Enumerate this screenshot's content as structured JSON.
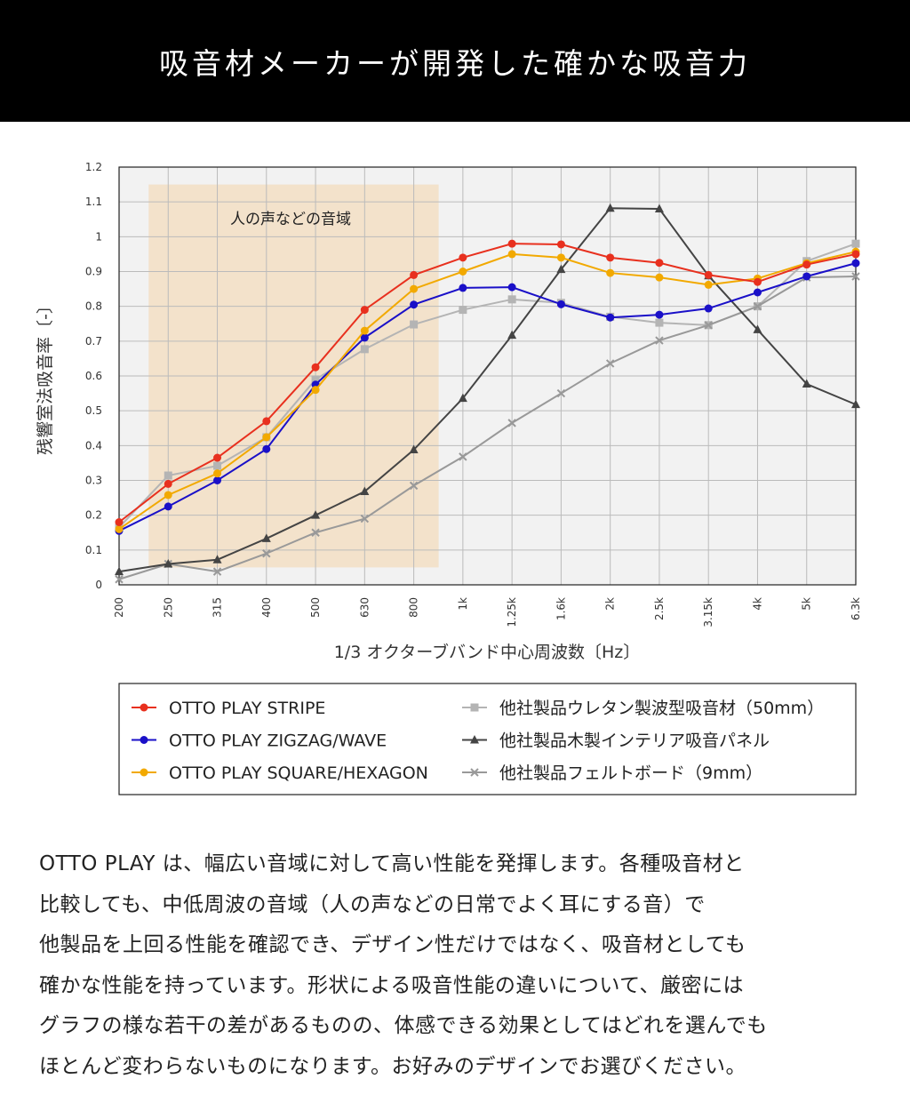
{
  "header": {
    "title": "吸音材メーカーが開発した確かな吸音力"
  },
  "chart_data": {
    "type": "line",
    "title": "",
    "xlabel": "1/3 オクターブバンド中心周波数〔Hz〕",
    "ylabel": "残響室法吸音率〔-〕",
    "ylim": [
      0,
      1.2
    ],
    "yticks": [
      "0",
      "0.1",
      "0.2",
      "0.3",
      "0.4",
      "0.5",
      "0.6",
      "0.7",
      "0.8",
      "0.9",
      "1",
      "1.1",
      "1.2"
    ],
    "categories": [
      "200",
      "250",
      "315",
      "400",
      "500",
      "630",
      "800",
      "1k",
      "1.25k",
      "1.6k",
      "2k",
      "2.5k",
      "3.15k",
      "4k",
      "5k",
      "6.3k"
    ],
    "grid": true,
    "legend_position": "bottom",
    "annotation": {
      "label": "人の声などの音域",
      "range": [
        "250",
        "800"
      ]
    },
    "series": [
      {
        "name": "OTTO  PLAY STRIPE",
        "color": "#e8301e",
        "marker": "circle",
        "values": [
          0.18,
          0.29,
          0.365,
          0.47,
          0.625,
          0.79,
          0.89,
          0.94,
          0.98,
          0.978,
          0.94,
          0.925,
          0.89,
          0.87,
          0.92,
          0.95
        ]
      },
      {
        "name": "OTTO  PLAY ZIGZAG/WAVE",
        "color": "#1a10c8",
        "marker": "circle",
        "values": [
          0.155,
          0.225,
          0.3,
          0.39,
          0.575,
          0.71,
          0.805,
          0.853,
          0.855,
          0.806,
          0.768,
          0.776,
          0.794,
          0.84,
          0.886,
          0.924
        ]
      },
      {
        "name": "OTTO  PLAY SQUARE/HEXAGON",
        "color": "#f2a900",
        "marker": "circle",
        "values": [
          0.16,
          0.258,
          0.32,
          0.424,
          0.56,
          0.73,
          0.85,
          0.9,
          0.95,
          0.94,
          0.896,
          0.883,
          0.862,
          0.88,
          0.924,
          0.957
        ]
      },
      {
        "name": "他社製品ウレタン製波型吸音材（50mm）",
        "color": "#b4b4b4",
        "marker": "square",
        "values": [
          0.165,
          0.314,
          0.342,
          0.424,
          0.59,
          0.677,
          0.748,
          0.79,
          0.82,
          0.81,
          0.77,
          0.753,
          0.746,
          0.8,
          0.93,
          0.98
        ]
      },
      {
        "name": "他社製品木製インテリア吸音パネル",
        "color": "#444444",
        "marker": "triangle",
        "values": [
          0.038,
          0.06,
          0.072,
          0.133,
          0.2,
          0.268,
          0.388,
          0.536,
          0.717,
          0.906,
          1.082,
          1.08,
          0.888,
          0.733,
          0.577,
          0.518
        ]
      },
      {
        "name": "他社製品フェルトボード（9mm）",
        "color": "#999999",
        "marker": "x",
        "values": [
          0.016,
          0.06,
          0.038,
          0.09,
          0.15,
          0.19,
          0.285,
          0.368,
          0.465,
          0.55,
          0.636,
          0.702,
          0.746,
          0.8,
          0.883,
          0.886
        ]
      }
    ]
  },
  "description": {
    "lines": [
      "OTTO PLAY は、幅広い音域に対して高い性能を発揮します。各種吸音材と",
      "比較しても、中低周波の音域（人の声などの日常でよく耳にする音）で",
      "他製品を上回る性能を確認でき、デザイン性だけではなく、吸音材としても",
      "確かな性能を持っています。形状による吸音性能の違いについて、厳密には",
      "グラフの様な若干の差があるものの、体感できる効果としてはどれを選んでも",
      "ほとんど変わらないものになります。お好みのデザインでお選びください。"
    ]
  }
}
